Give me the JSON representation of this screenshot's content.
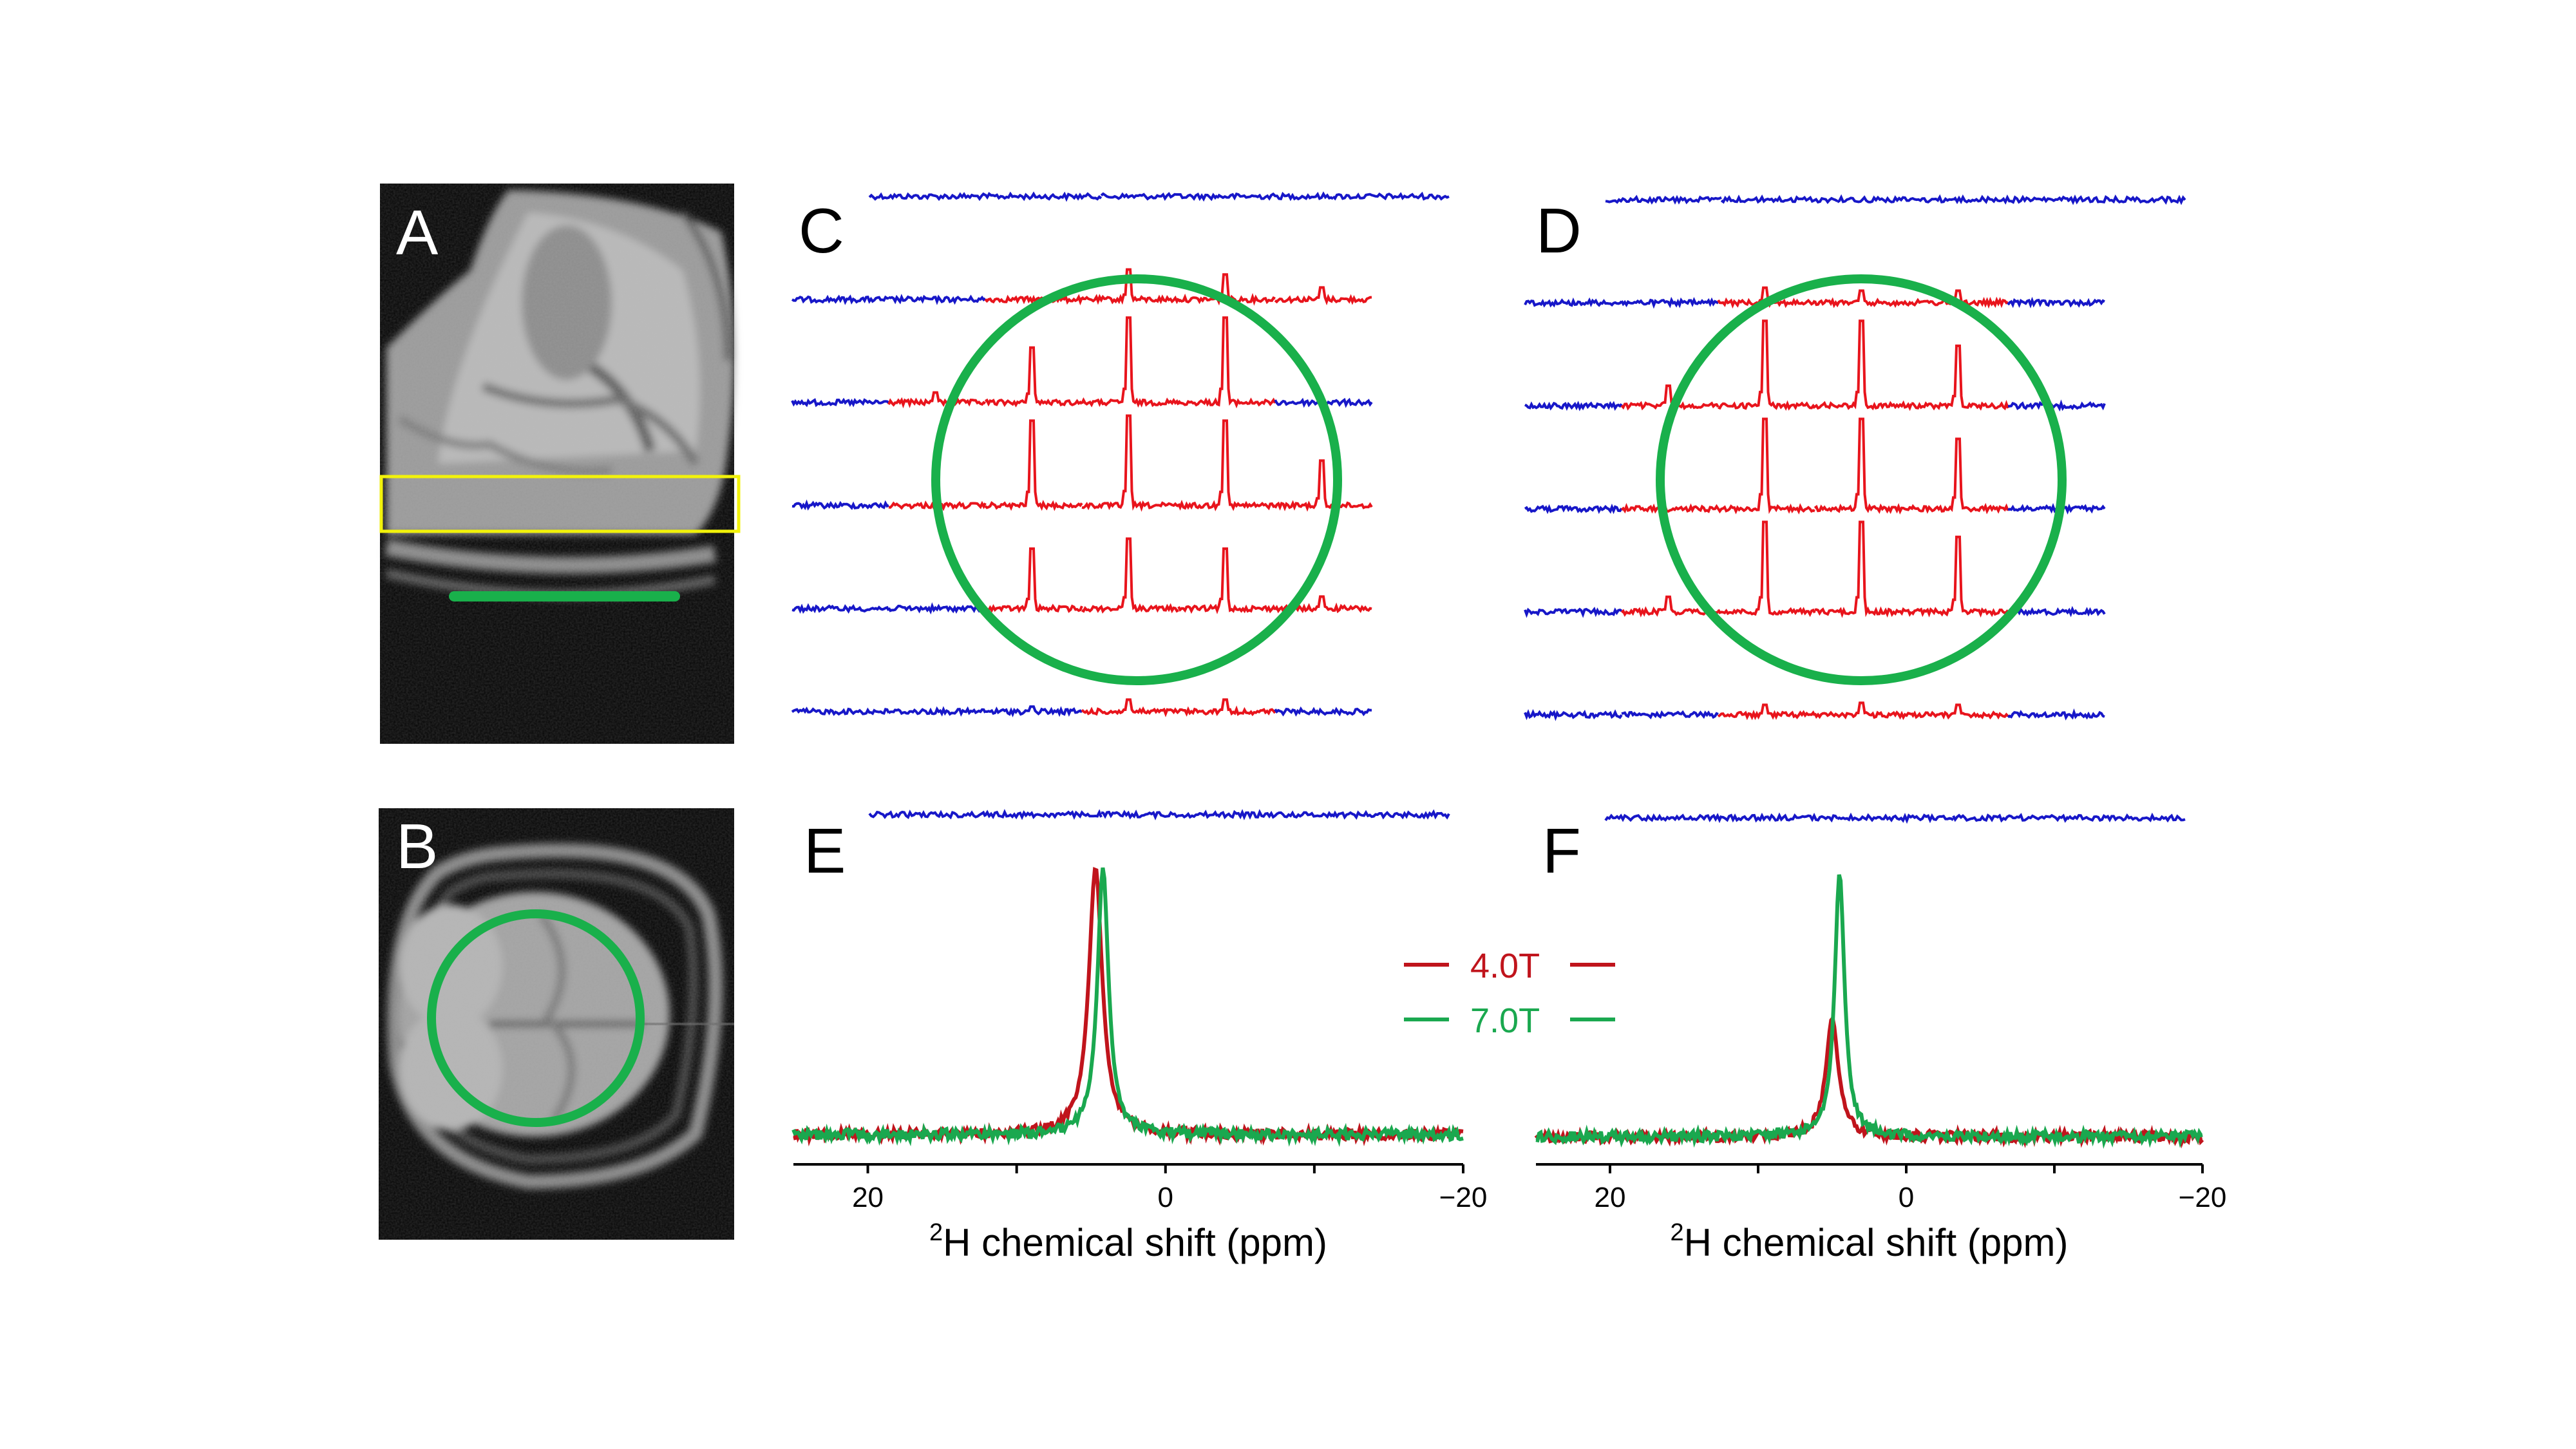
{
  "panels": {
    "A": {
      "label": "A"
    },
    "B": {
      "label": "B"
    },
    "C": {
      "label": "C"
    },
    "D": {
      "label": "D"
    },
    "E": {
      "label": "E"
    },
    "F": {
      "label": "F"
    }
  },
  "colors": {
    "voxel_inside": "#e8141c",
    "voxel_outside": "#1717c8",
    "roi_circle": "#19b04b",
    "slab_box": "#f2f20a",
    "field_4T": "#c0141c",
    "field_7T": "#1aa84f"
  },
  "grids": {
    "C": {
      "rows": [
        {
          "segments": [
            "blue",
            "blue",
            "blue",
            "blue",
            "blue",
            "blue"
          ],
          "peaks": [
            0,
            0,
            0,
            0,
            0,
            0
          ]
        },
        {
          "segments": [
            "blue",
            "blue",
            "red",
            "red",
            "red",
            "red"
          ],
          "peaks": [
            0,
            0,
            0,
            0.3,
            0.25,
            0.12
          ]
        },
        {
          "segments": [
            "blue",
            "red",
            "red",
            "red",
            "red",
            "blue"
          ],
          "peaks": [
            0,
            0.1,
            0.55,
            0.85,
            0.85,
            0
          ]
        },
        {
          "segments": [
            "blue",
            "red",
            "red",
            "red",
            "red",
            "red"
          ],
          "peaks": [
            0,
            0,
            0.85,
            0.9,
            0.85,
            0.45
          ]
        },
        {
          "segments": [
            "blue",
            "blue",
            "red",
            "red",
            "red",
            "red"
          ],
          "peaks": [
            0,
            0,
            0.6,
            0.7,
            0.6,
            0.12
          ]
        },
        {
          "segments": [
            "blue",
            "blue",
            "blue",
            "red",
            "red",
            "blue"
          ],
          "peaks": [
            0,
            0,
            0.05,
            0.12,
            0.12,
            0
          ]
        },
        {
          "segments": [
            "blue",
            "blue",
            "blue",
            "blue",
            "blue",
            "blue"
          ],
          "peaks": [
            0,
            0,
            0,
            0,
            0,
            0
          ]
        }
      ]
    },
    "D": {
      "rows": [
        {
          "segments": [
            "blue",
            "blue",
            "blue",
            "blue",
            "blue",
            "blue"
          ],
          "peaks": [
            0,
            0,
            0,
            0,
            0,
            0
          ]
        },
        {
          "segments": [
            "blue",
            "blue",
            "red",
            "red",
            "red",
            "blue"
          ],
          "peaks": [
            0,
            0,
            0.15,
            0.12,
            0.12,
            0
          ]
        },
        {
          "segments": [
            "blue",
            "red",
            "red",
            "red",
            "red",
            "blue"
          ],
          "peaks": [
            0,
            0.2,
            0.85,
            0.85,
            0.6,
            0
          ]
        },
        {
          "segments": [
            "blue",
            "red",
            "red",
            "red",
            "red",
            "blue"
          ],
          "peaks": [
            0,
            0,
            0.9,
            0.9,
            0.7,
            0
          ]
        },
        {
          "segments": [
            "blue",
            "red",
            "red",
            "red",
            "red",
            "blue"
          ],
          "peaks": [
            0,
            0.15,
            0.9,
            0.9,
            0.75,
            0
          ]
        },
        {
          "segments": [
            "blue",
            "blue",
            "red",
            "red",
            "red",
            "blue"
          ],
          "peaks": [
            0,
            0,
            0.1,
            0.12,
            0.1,
            0
          ]
        },
        {
          "segments": [
            "blue",
            "blue",
            "blue",
            "blue",
            "blue",
            "blue"
          ],
          "peaks": [
            0,
            0,
            0,
            0,
            0,
            0
          ]
        }
      ]
    }
  },
  "chart_data": [
    {
      "panel": "E",
      "type": "line",
      "xlabel_sup": "2",
      "xlabel": "H chemical shift (ppm)",
      "xlim": [
        25,
        -20
      ],
      "ticks": [
        {
          "value": 20,
          "label": "20"
        },
        {
          "value": 0,
          "label": "0"
        },
        {
          "value": -20,
          "label": "−20"
        }
      ],
      "series": [
        {
          "name": "4.0T",
          "color": "#c0141c",
          "peak_ppm": 4.7,
          "peak_height": 1.0,
          "width_ppm": 0.55
        },
        {
          "name": "7.0T",
          "color": "#1aa84f",
          "peak_ppm": 4.2,
          "peak_height": 1.0,
          "width_ppm": 0.45
        }
      ]
    },
    {
      "panel": "F",
      "type": "line",
      "xlabel_sup": "2",
      "xlabel": "H chemical shift (ppm)",
      "xlim": [
        25,
        -20
      ],
      "ticks": [
        {
          "value": 20,
          "label": "20"
        },
        {
          "value": 0,
          "label": "0"
        },
        {
          "value": -20,
          "label": "−20"
        }
      ],
      "series": [
        {
          "name": "4.0T",
          "color": "#c0141c",
          "peak_ppm": 5.0,
          "peak_height": 0.45,
          "width_ppm": 0.5
        },
        {
          "name": "7.0T",
          "color": "#1aa84f",
          "peak_ppm": 4.5,
          "peak_height": 1.0,
          "width_ppm": 0.4
        }
      ]
    }
  ],
  "legend": {
    "items": [
      {
        "label": "4.0T",
        "color": "#c0141c"
      },
      {
        "label": "7.0T",
        "color": "#1aa84f"
      }
    ]
  }
}
